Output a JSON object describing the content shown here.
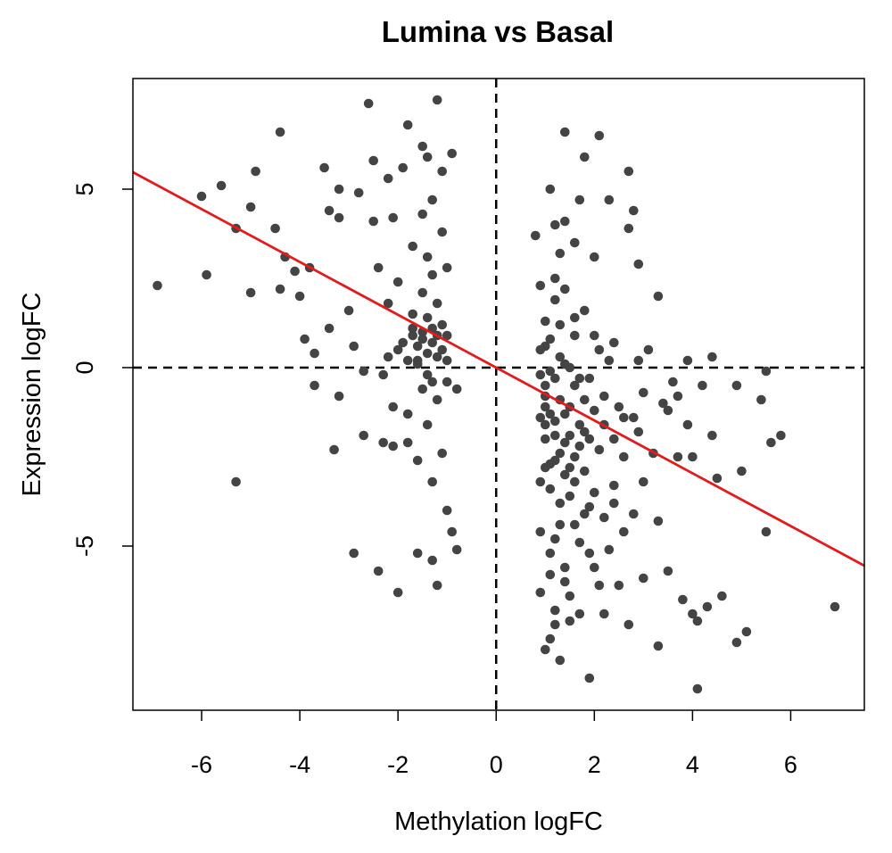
{
  "chart_data": {
    "type": "scatter",
    "title": "Lumina vs Basal",
    "xlabel": "Methylation logFC",
    "ylabel": "Expression logFC",
    "xlim": [
      -7.4,
      7.5
    ],
    "ylim": [
      -9.6,
      8.1
    ],
    "xticks": [
      -6,
      -4,
      -2,
      0,
      2,
      4,
      6
    ],
    "yticks": [
      -5,
      0,
      5
    ],
    "reference_lines": {
      "x": 0,
      "y": 0,
      "style": "dashed"
    },
    "regression_line": {
      "intercept": 0.0,
      "slope": -0.74,
      "color": "#e41a1c"
    },
    "point_color": "#444444",
    "series": [
      {
        "points": [
          [
            -6.9,
            2.3
          ],
          [
            -6,
            4.8
          ],
          [
            -5.9,
            2.6
          ],
          [
            -5.6,
            5.1
          ],
          [
            -5.3,
            3.9
          ],
          [
            -5.3,
            -3.2
          ],
          [
            -5,
            4.5
          ],
          [
            -5,
            2.1
          ],
          [
            -4.9,
            5.5
          ],
          [
            -4.5,
            3.9
          ],
          [
            -4.4,
            6.6
          ],
          [
            -4.4,
            2.2
          ],
          [
            -4.3,
            3.1
          ],
          [
            -4.1,
            2.7
          ],
          [
            -4,
            2
          ],
          [
            -3.9,
            0.8
          ],
          [
            -3.8,
            2.8
          ],
          [
            -3.7,
            0.4
          ],
          [
            -3.7,
            -0.5
          ],
          [
            -3.5,
            5.6
          ],
          [
            -3.4,
            4.4
          ],
          [
            -3.4,
            1.1
          ],
          [
            -3.3,
            -2.3
          ],
          [
            -3.2,
            5
          ],
          [
            -3.2,
            4.2
          ],
          [
            -3.2,
            -0.8
          ],
          [
            -3.0,
            1.6
          ],
          [
            -2.9,
            0.6
          ],
          [
            -2.9,
            -5.2
          ],
          [
            -2.8,
            4.9
          ],
          [
            -2.7,
            -0.1
          ],
          [
            -2.7,
            -1.9
          ],
          [
            -2.6,
            7.4
          ],
          [
            -2.5,
            5.8
          ],
          [
            -2.5,
            4.1
          ],
          [
            -2.4,
            2.8
          ],
          [
            -2.4,
            -5.7
          ],
          [
            -2.3,
            -0.2
          ],
          [
            -2.3,
            -2.1
          ],
          [
            -2.2,
            5.3
          ],
          [
            -2.2,
            1.8
          ],
          [
            -2.1,
            4.2
          ],
          [
            -2.1,
            -1.1
          ],
          [
            -2.1,
            -2.2
          ],
          [
            -2,
            -6.3
          ],
          [
            -2,
            0.5
          ],
          [
            -2,
            2.4
          ],
          [
            -1.9,
            5.6
          ],
          [
            -1.8,
            -2.1
          ],
          [
            -1.8,
            -1.3
          ],
          [
            -1.8,
            6.8
          ],
          [
            -1.7,
            3.4
          ],
          [
            -1.7,
            1.1
          ],
          [
            -1.6,
            -5.2
          ],
          [
            -1.6,
            -2.6
          ],
          [
            -1.6,
            0.2
          ],
          [
            -1.5,
            6.2
          ],
          [
            -1.5,
            4.3
          ],
          [
            -1.5,
            2.1
          ],
          [
            -1.5,
            -0.6
          ],
          [
            -1.4,
            5.9
          ],
          [
            -1.4,
            3.1
          ],
          [
            -1.4,
            1.4
          ],
          [
            -1.4,
            -1.6
          ],
          [
            -1.3,
            -5.4
          ],
          [
            -1.3,
            -3.2
          ],
          [
            -1.3,
            4.7
          ],
          [
            -1.3,
            2.6
          ],
          [
            -1.2,
            7.5
          ],
          [
            -1.2,
            -6.1
          ],
          [
            -1.2,
            -0.9
          ],
          [
            -1.2,
            1.8
          ],
          [
            -1.1,
            5.5
          ],
          [
            -1.1,
            3.8
          ],
          [
            -1.1,
            -2.4
          ],
          [
            -1,
            -4
          ],
          [
            -1,
            0.9
          ],
          [
            -1,
            2.8
          ],
          [
            -0.9,
            6
          ],
          [
            -0.9,
            -4.6
          ],
          [
            -0.8,
            -0.6
          ],
          [
            -0.8,
            -5.1
          ],
          [
            -1.7,
            0.9
          ],
          [
            -1.6,
            0.6
          ],
          [
            -1.5,
            0.8
          ],
          [
            -1.4,
            0.4
          ],
          [
            -1.3,
            0.7
          ],
          [
            -1.2,
            0.3
          ],
          [
            -1.6,
            0.1
          ],
          [
            -1.1,
            0.5
          ],
          [
            -1.0,
            0.2
          ],
          [
            -1.5,
            1.0
          ],
          [
            -1.3,
            1.1
          ],
          [
            -1.2,
            0.9
          ],
          [
            -1.8,
            0.2
          ],
          [
            -1.4,
            -0.2
          ],
          [
            -1.9,
            0.7
          ],
          [
            -1.1,
            1.2
          ],
          [
            -1.7,
            1.5
          ],
          [
            -1.0,
            -0.4
          ],
          [
            -1.3,
            -0.4
          ],
          [
            -2.2,
            0.3
          ],
          [
            0.8,
            3.7
          ],
          [
            0.9,
            2.3
          ],
          [
            0.9,
            -3.2
          ],
          [
            0.9,
            -4.6
          ],
          [
            0.9,
            -6.3
          ],
          [
            1,
            -7.9
          ],
          [
            1,
            -1.1
          ],
          [
            1,
            0.6
          ],
          [
            1.1,
            5
          ],
          [
            1.1,
            -7.6
          ],
          [
            1.1,
            -5.2
          ],
          [
            1.1,
            -2.7
          ],
          [
            1.2,
            4
          ],
          [
            1.2,
            1.9
          ],
          [
            1.2,
            -6.8
          ],
          [
            1.3,
            -3.8
          ],
          [
            1.3,
            3.2
          ],
          [
            1.3,
            -8.2
          ],
          [
            1.4,
            6.6
          ],
          [
            1.4,
            4.1
          ],
          [
            1.4,
            -6
          ],
          [
            1.5,
            -1.9
          ],
          [
            1.5,
            -7.1
          ],
          [
            1.6,
            3.5
          ],
          [
            1.6,
            -4.4
          ],
          [
            1.7,
            4.7
          ],
          [
            1.7,
            -6.9
          ],
          [
            1.8,
            5.9
          ],
          [
            1.8,
            -2.9
          ],
          [
            1.8,
            1.6
          ],
          [
            1.9,
            -5.2
          ],
          [
            1.9,
            -8.7
          ],
          [
            2,
            3.1
          ],
          [
            2.1,
            -6.1
          ],
          [
            2.1,
            6.5
          ],
          [
            2.2,
            -4.2
          ],
          [
            2.2,
            -6.9
          ],
          [
            2.3,
            0.2
          ],
          [
            2.3,
            4.7
          ],
          [
            2.4,
            -3.3
          ],
          [
            2.5,
            -6.1
          ],
          [
            2.6,
            -1.4
          ],
          [
            2.7,
            3.9
          ],
          [
            2.7,
            5.5
          ],
          [
            2.7,
            -7.2
          ],
          [
            2.8,
            -4.1
          ],
          [
            2.8,
            4.4
          ],
          [
            2.9,
            2.9
          ],
          [
            2.9,
            -1.8
          ],
          [
            3,
            -5.9
          ],
          [
            3.1,
            0.5
          ],
          [
            3.2,
            -2.4
          ],
          [
            3.3,
            -7.8
          ],
          [
            3.3,
            -4.3
          ],
          [
            3.3,
            2
          ],
          [
            3.4,
            -1
          ],
          [
            3.5,
            -5.7
          ],
          [
            3.6,
            -0.4
          ],
          [
            3.7,
            -2.5
          ],
          [
            3.8,
            -6.5
          ],
          [
            3.9,
            0.2
          ],
          [
            3.9,
            -1.6
          ],
          [
            4,
            -6.9
          ],
          [
            4,
            -2.5
          ],
          [
            4.1,
            -7.1
          ],
          [
            4.1,
            -9
          ],
          [
            4.2,
            -0.5
          ],
          [
            4.3,
            -6.7
          ],
          [
            4.4,
            0.3
          ],
          [
            4.4,
            -1.9
          ],
          [
            4.5,
            -3.1
          ],
          [
            4.6,
            -6.4
          ],
          [
            4.9,
            -0.5
          ],
          [
            4.9,
            -7.7
          ],
          [
            5,
            -2.9
          ],
          [
            5.1,
            -7.4
          ],
          [
            5.4,
            -0.9
          ],
          [
            5.5,
            -0.1
          ],
          [
            5.5,
            -4.6
          ],
          [
            5.6,
            -2.1
          ],
          [
            5.8,
            -1.9
          ],
          [
            6.9,
            -6.7
          ],
          [
            1,
            -2
          ],
          [
            1.2,
            -1.5
          ],
          [
            1.4,
            -1.3
          ],
          [
            1.6,
            -0.5
          ],
          [
            1.2,
            -0.3
          ],
          [
            1.4,
            0.1
          ],
          [
            1,
            -0.5
          ],
          [
            1.8,
            -0.9
          ],
          [
            2,
            -1.2
          ],
          [
            1.3,
            -2.4
          ],
          [
            1.5,
            -2.8
          ],
          [
            1.7,
            -2.2
          ],
          [
            1.1,
            -3.4
          ],
          [
            2.4,
            -2
          ],
          [
            2.6,
            -2.5
          ],
          [
            2.2,
            -1.6
          ],
          [
            1.9,
            -0.3
          ],
          [
            2.1,
            0.5
          ],
          [
            1.6,
            0.9
          ],
          [
            1.3,
            1.2
          ],
          [
            1.1,
            0.8
          ],
          [
            1.5,
            -3.6
          ],
          [
            1.2,
            -4.8
          ],
          [
            1.8,
            -4.1
          ],
          [
            2,
            -3.5
          ],
          [
            1.4,
            -5.6
          ],
          [
            2.3,
            -5.1
          ],
          [
            1.0,
            -0.8
          ],
          [
            1.1,
            -1.3
          ],
          [
            1.3,
            -0.9
          ],
          [
            1.5,
            -1.1
          ],
          [
            1.7,
            -1.6
          ],
          [
            1.9,
            -2.0
          ],
          [
            2.1,
            -2.3
          ],
          [
            1.2,
            -1.9
          ],
          [
            1.4,
            -2.1
          ],
          [
            1.6,
            -2.5
          ],
          [
            1.8,
            -1.8
          ],
          [
            1.0,
            -1.6
          ],
          [
            1.2,
            -2.6
          ],
          [
            1.4,
            -3.0
          ],
          [
            1.6,
            -3.2
          ],
          [
            1.1,
            -0.1
          ],
          [
            1.3,
            0.3
          ],
          [
            1.5,
            0.0
          ],
          [
            1.7,
            -0.3
          ],
          [
            2.2,
            -0.8
          ],
          [
            2.5,
            -1.1
          ],
          [
            2.8,
            -1.4
          ],
          [
            3.0,
            -0.7
          ],
          [
            3.5,
            -1.2
          ],
          [
            3.7,
            -0.8
          ],
          [
            1.0,
            -2.8
          ],
          [
            1.9,
            -3.9
          ],
          [
            1.3,
            -4.4
          ],
          [
            1.7,
            -4.9
          ],
          [
            1.1,
            -5.8
          ],
          [
            1.5,
            -6.4
          ],
          [
            2.0,
            -5.6
          ],
          [
            1.2,
            -7.2
          ],
          [
            2.6,
            -4.6
          ],
          [
            3.0,
            -3.2
          ],
          [
            2.4,
            -3.8
          ],
          [
            0.9,
            -1.4
          ],
          [
            0.9,
            -0.2
          ],
          [
            0.9,
            0.5
          ],
          [
            1.0,
            1.3
          ],
          [
            1.2,
            2.5
          ],
          [
            1.4,
            2.2
          ],
          [
            1.6,
            1.4
          ],
          [
            2.0,
            0.9
          ],
          [
            2.4,
            0.7
          ],
          [
            2.9,
            0.2
          ]
        ]
      }
    ]
  }
}
